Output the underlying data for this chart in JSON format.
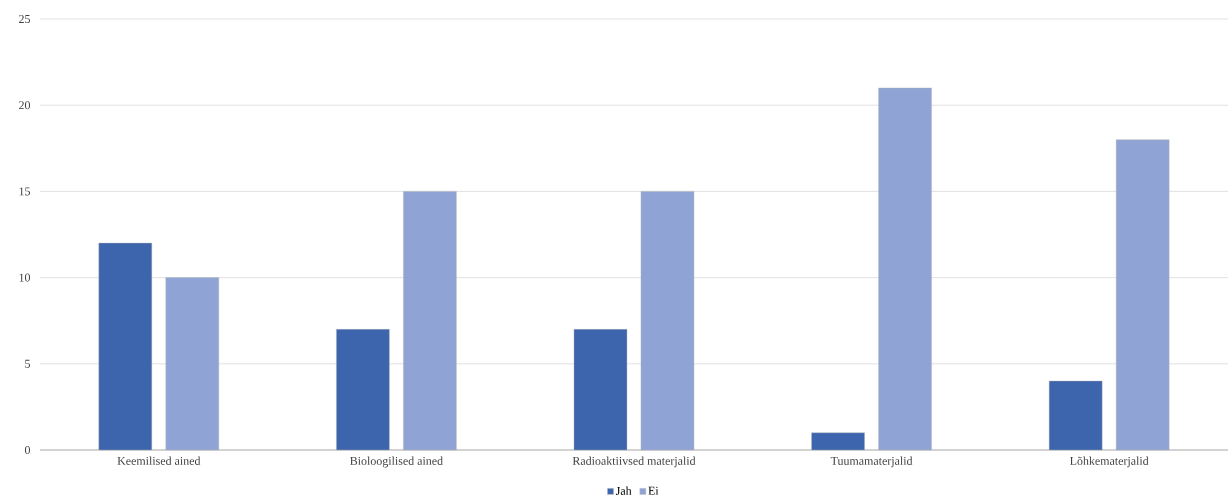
{
  "chart_data": {
    "type": "bar",
    "categories": [
      "Keemilised ained",
      "Bioloogilised ained",
      "Radioaktiivsed materjalid",
      "Tuumamaterjalid",
      "Lõhkematerjalid"
    ],
    "series": [
      {
        "name": "Jah",
        "color": "#3d65ad",
        "values": [
          12,
          7,
          7,
          1,
          4
        ]
      },
      {
        "name": "Ei",
        "color": "#8fa4d5",
        "values": [
          10,
          15,
          15,
          21,
          18
        ]
      }
    ],
    "ylim": [
      0,
      25
    ],
    "yticks": [
      0,
      5,
      10,
      15,
      20,
      25
    ],
    "grid": "y",
    "legend": "bottom"
  }
}
